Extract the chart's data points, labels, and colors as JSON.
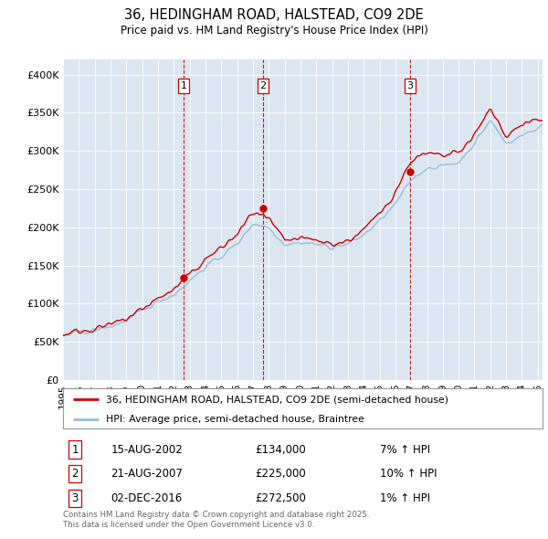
{
  "title": "36, HEDINGHAM ROAD, HALSTEAD, CO9 2DE",
  "subtitle": "Price paid vs. HM Land Registry's House Price Index (HPI)",
  "bg_color": "#dce6f1",
  "ylim": [
    0,
    420000
  ],
  "yticks": [
    0,
    50000,
    100000,
    150000,
    200000,
    250000,
    300000,
    350000,
    400000
  ],
  "ytick_labels": [
    "£0",
    "£50K",
    "£100K",
    "£150K",
    "£200K",
    "£250K",
    "£300K",
    "£350K",
    "£400K"
  ],
  "xlim_start": 1995.0,
  "xlim_end": 2025.3,
  "sale_dates": [
    2002.62,
    2007.64,
    2016.92
  ],
  "sale_prices": [
    134000,
    225000,
    272500
  ],
  "sale_labels": [
    "1",
    "2",
    "3"
  ],
  "sale_pct": [
    "7% ↑ HPI",
    "10% ↑ HPI",
    "1% ↑ HPI"
  ],
  "sale_price_strs": [
    "£134,000",
    "£225,000",
    "£272,500"
  ],
  "sale_date_strs": [
    "15-AUG-2002",
    "21-AUG-2007",
    "02-DEC-2016"
  ],
  "legend_line1": "36, HEDINGHAM ROAD, HALSTEAD, CO9 2DE (semi-detached house)",
  "legend_line2": "HPI: Average price, semi-detached house, Braintree",
  "footer": "Contains HM Land Registry data © Crown copyright and database right 2025.\nThis data is licensed under the Open Government Licence v3.0.",
  "line_color_red": "#cc0000",
  "line_color_blue": "#99bbdd",
  "vline_color": "#cc0000",
  "hpi_anchors_t": [
    1995,
    1996,
    1997,
    1998,
    1999,
    2000,
    2001,
    2002,
    2003,
    2004,
    2005,
    2006,
    2007,
    2008,
    2009,
    2010,
    2011,
    2012,
    2013,
    2014,
    2015,
    2016,
    2017,
    2018,
    2019,
    2020,
    2021,
    2022,
    2023,
    2024,
    2025,
    2025.3
  ],
  "hpi_anchors_v": [
    58000,
    62000,
    65000,
    70000,
    78000,
    90000,
    103000,
    112000,
    130000,
    148000,
    162000,
    178000,
    205000,
    200000,
    178000,
    180000,
    178000,
    174000,
    178000,
    190000,
    208000,
    230000,
    262000,
    278000,
    280000,
    285000,
    310000,
    340000,
    310000,
    320000,
    330000,
    335000
  ],
  "red_anchors_t": [
    1995,
    1996,
    1997,
    1998,
    1999,
    2000,
    2001,
    2002,
    2003,
    2004,
    2005,
    2006,
    2007,
    2008,
    2009,
    2010,
    2011,
    2012,
    2013,
    2014,
    2015,
    2016,
    2017,
    2018,
    2019,
    2020,
    2021,
    2022,
    2023,
    2024,
    2025,
    2025.3
  ],
  "red_anchors_v": [
    60000,
    64000,
    67000,
    72000,
    80000,
    93000,
    107000,
    118000,
    138000,
    158000,
    173000,
    190000,
    220000,
    210000,
    182000,
    185000,
    183000,
    178000,
    182000,
    196000,
    218000,
    246000,
    288000,
    296000,
    293000,
    298000,
    320000,
    355000,
    320000,
    335000,
    340000,
    340000
  ]
}
